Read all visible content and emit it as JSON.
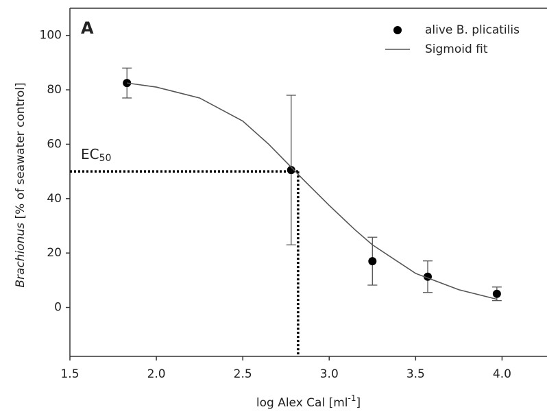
{
  "chart_data": {
    "type": "scatter",
    "panel_label": "A",
    "xlabel": [
      "log Alex Cal [ml",
      "-1",
      "]"
    ],
    "ylabel": [
      "Brachionus",
      " [% of seawater control]"
    ],
    "xlim": [
      1.5,
      4.26
    ],
    "ylim": [
      -18,
      110
    ],
    "xticks": [
      1.5,
      {
        "value": 2,
        "label": "2.0"
      },
      2.5,
      {
        "value": 3,
        "label": "3.0"
      },
      3.5,
      {
        "value": 4,
        "label": "4.0"
      }
    ],
    "yticks": [
      0,
      20,
      40,
      60,
      80,
      100
    ],
    "legend": "top-right",
    "series": [
      {
        "name": "alive B. plicatilis",
        "color": "#000000",
        "x": [
          1.83,
          2.78,
          3.25,
          3.57,
          3.97
        ],
        "values": [
          82.5,
          50.5,
          17,
          11.3,
          5
        ],
        "errors": [
          5.5,
          27.5,
          8.8,
          5.8,
          2.5
        ]
      },
      {
        "name": "Sigmoid fit",
        "color": "#555555",
        "type": "line",
        "x": [
          1.83,
          2.0,
          2.25,
          2.5,
          2.65,
          2.75,
          2.85,
          3.0,
          3.15,
          3.25,
          3.5,
          3.75,
          3.97
        ],
        "values": [
          82.5,
          81,
          77,
          68.5,
          60,
          53.5,
          47,
          37.5,
          28.5,
          23,
          12.5,
          6.5,
          3
        ]
      }
    ],
    "ec50": {
      "label": [
        "EC",
        "50"
      ],
      "x": 2.82,
      "y": 50
    }
  }
}
